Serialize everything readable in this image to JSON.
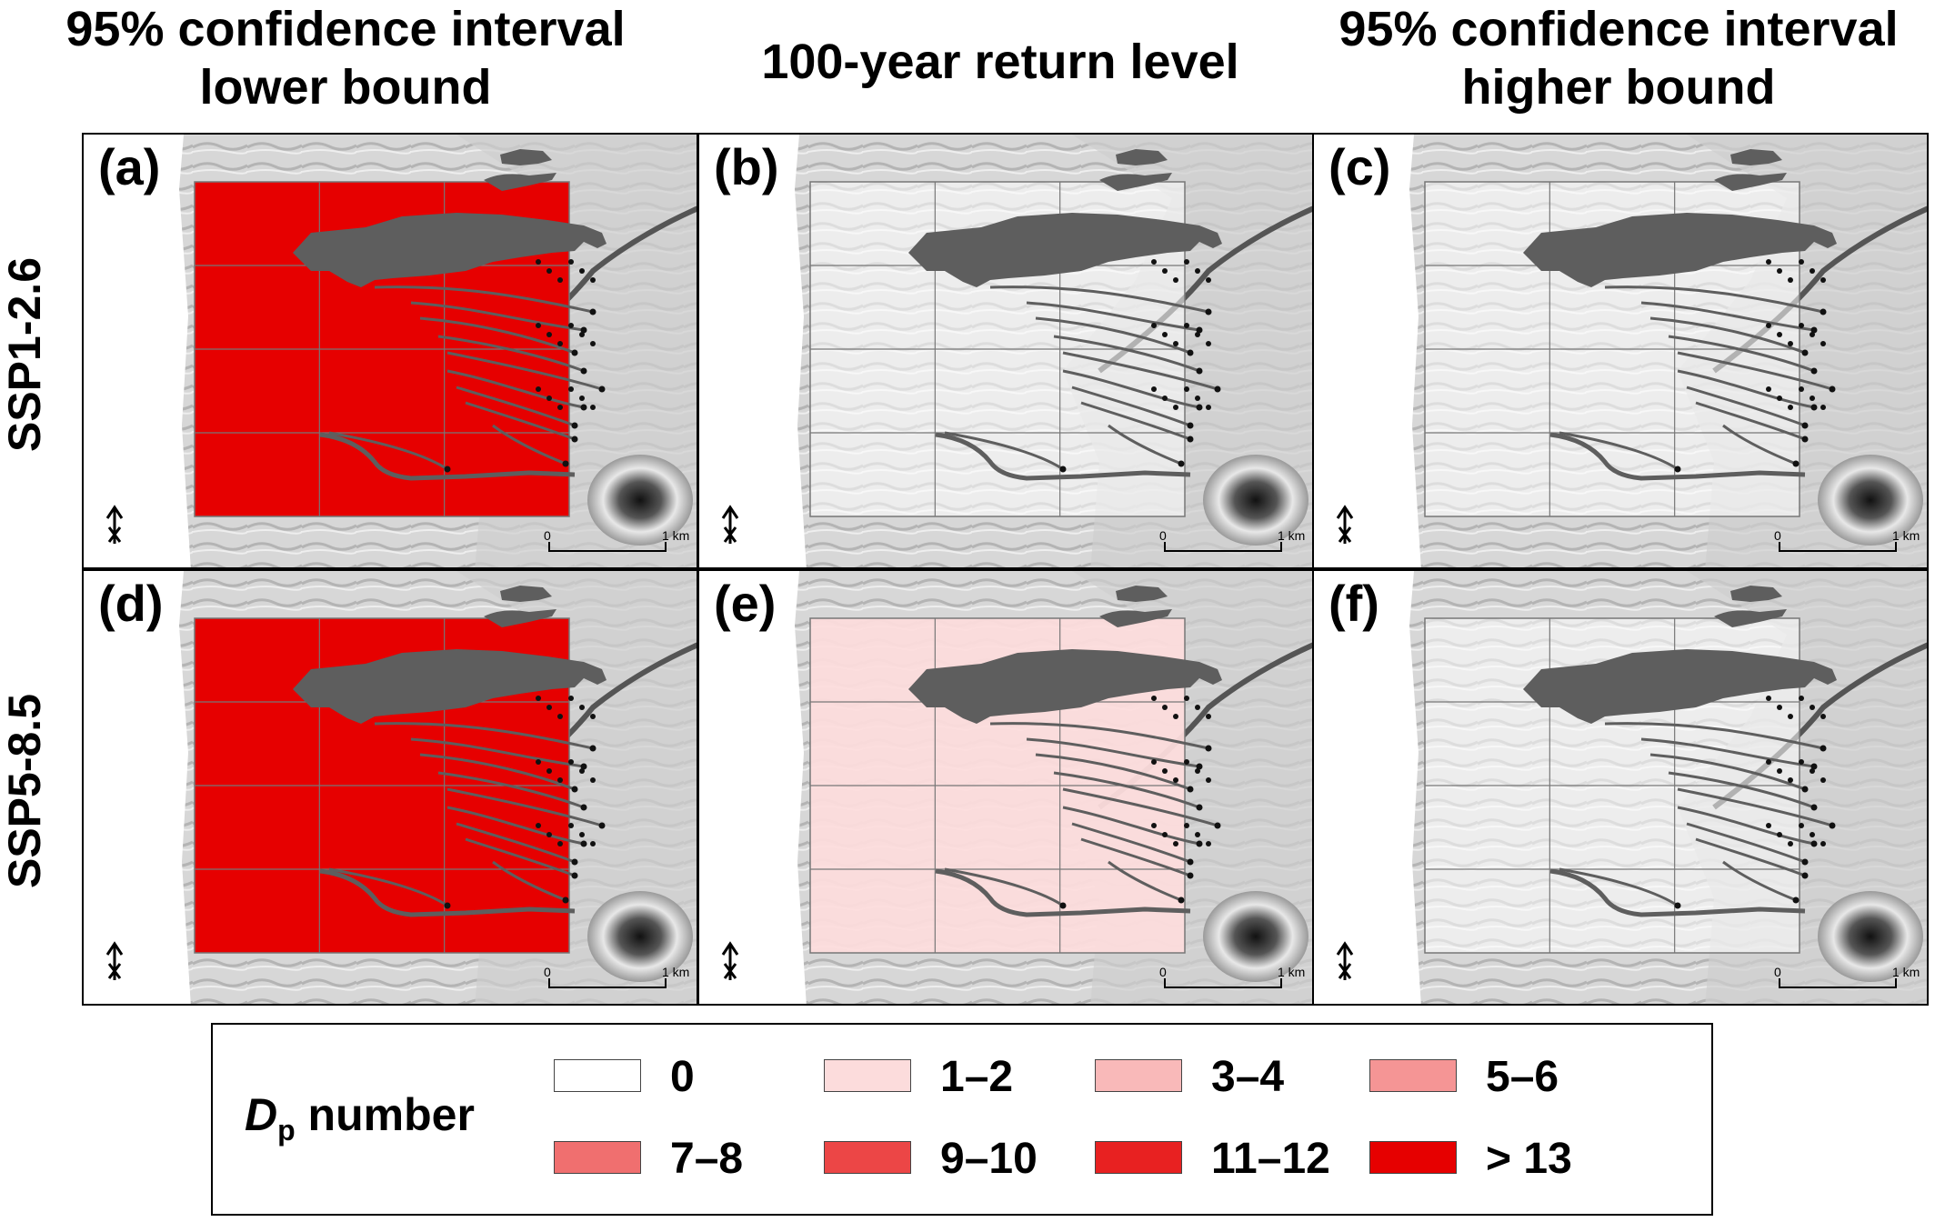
{
  "column_titles": [
    [
      "95% confidence interval",
      "lower bound"
    ],
    [
      "100-year return level"
    ],
    [
      "95% confidence interval",
      "higher bound"
    ]
  ],
  "row_labels": [
    "SSP1-2.6",
    "SSP5-8.5"
  ],
  "panels": [
    {
      "label": "(a)",
      "row": 0,
      "col": 0,
      "class": "> 13"
    },
    {
      "label": "(b)",
      "row": 0,
      "col": 1,
      "class": "0"
    },
    {
      "label": "(c)",
      "row": 0,
      "col": 2,
      "class": "0"
    },
    {
      "label": "(d)",
      "row": 1,
      "col": 0,
      "class": "> 13"
    },
    {
      "label": "(e)",
      "row": 1,
      "col": 1,
      "class": "1–2"
    },
    {
      "label": "(f)",
      "row": 1,
      "col": 2,
      "class": "0"
    }
  ],
  "scale_bar": {
    "start": "0",
    "end": "1 km"
  },
  "north_arrow": "N",
  "legend": {
    "title_var": "D",
    "title_sub": "p",
    "title_rest": " number",
    "items": [
      {
        "label": "0",
        "color": "#ffffff"
      },
      {
        "label": "1–2",
        "color": "#fcdcdc"
      },
      {
        "label": "3–4",
        "color": "#f9b9b9"
      },
      {
        "label": "5–6",
        "color": "#f59595"
      },
      {
        "label": "7–8",
        "color": "#f06f6f"
      },
      {
        "label": "9–10",
        "color": "#ec4646"
      },
      {
        "label": "11–12",
        "color": "#e82121"
      },
      {
        "label": "> 13",
        "color": "#e60000"
      }
    ]
  }
}
